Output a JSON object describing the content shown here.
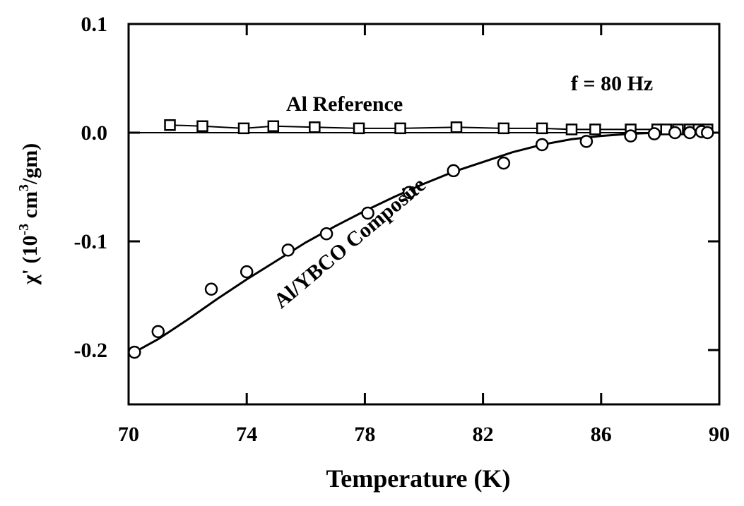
{
  "chart_data": {
    "type": "scatter",
    "xlabel": "Temperature (K)",
    "ylabel_parts": {
      "chi": "χ'",
      "open": "(10",
      "exp1": "-3",
      "mid": "cm",
      "exp2": "3",
      "close": "/gm)"
    },
    "xlim": [
      70,
      90
    ],
    "ylim": [
      -0.25,
      0.1
    ],
    "x_ticks": [
      70,
      74,
      78,
      82,
      86,
      90
    ],
    "x_tick_labels": [
      "70",
      "74",
      "78",
      "82",
      "86",
      "90"
    ],
    "y_ticks": [
      0.1,
      0.0,
      -0.1,
      -0.2
    ],
    "y_tick_labels": [
      "0.1",
      "0.0",
      "-0.1",
      "-0.2"
    ],
    "annotations": {
      "frequency": "f = 80 Hz",
      "reference": "Al Reference",
      "composite": "Al/YBCO Composite"
    },
    "zero_line": true,
    "series": [
      {
        "name": "Al Reference",
        "marker": "square",
        "x": [
          71.4,
          72.5,
          73.9,
          74.9,
          76.3,
          77.8,
          79.2,
          81.1,
          82.7,
          84.0,
          85.0,
          85.8,
          87.0,
          87.9,
          88.2,
          88.6,
          89.0,
          89.3,
          89.6
        ],
        "y": [
          0.007,
          0.006,
          0.004,
          0.006,
          0.005,
          0.004,
          0.004,
          0.005,
          0.004,
          0.004,
          0.003,
          0.003,
          0.003,
          0.003,
          0.003,
          0.003,
          0.003,
          0.003,
          0.003
        ]
      },
      {
        "name": "Al/YBCO Composite",
        "marker": "circle",
        "x": [
          70.2,
          71.0,
          72.8,
          74.0,
          75.4,
          76.7,
          78.1,
          79.5,
          81.0,
          82.7,
          84.0,
          85.5,
          87.0,
          87.8,
          88.5,
          89.0,
          89.4,
          89.6
        ],
        "y": [
          -0.202,
          -0.183,
          -0.144,
          -0.128,
          -0.108,
          -0.093,
          -0.074,
          -0.055,
          -0.035,
          -0.028,
          -0.011,
          -0.008,
          -0.003,
          -0.001,
          0.0,
          0.0,
          0.001,
          0.0
        ]
      }
    ],
    "fit_curve": {
      "x": [
        70.0,
        71.0,
        72.0,
        73.0,
        74.0,
        75.0,
        76.0,
        77.0,
        78.0,
        79.0,
        80.0,
        81.0,
        82.0,
        83.0,
        84.0,
        85.0,
        86.0,
        87.0,
        88.0,
        89.0,
        89.6
      ],
      "y": [
        -0.205,
        -0.19,
        -0.172,
        -0.153,
        -0.135,
        -0.118,
        -0.101,
        -0.086,
        -0.072,
        -0.059,
        -0.047,
        -0.036,
        -0.027,
        -0.018,
        -0.011,
        -0.006,
        -0.003,
        -0.001,
        0.0,
        0.0,
        0.0
      ]
    }
  }
}
